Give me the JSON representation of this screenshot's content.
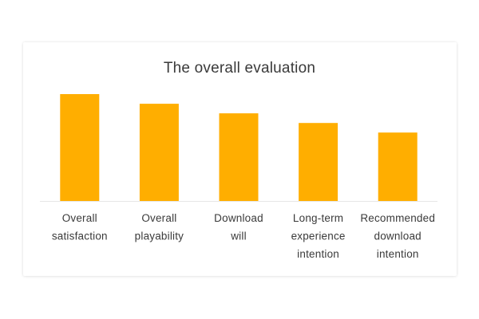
{
  "chart_data": {
    "type": "bar",
    "title": "The overall evaluation",
    "categories": [
      [
        "Overall",
        "satisfaction"
      ],
      [
        "Overall",
        "playability"
      ],
      [
        "Download",
        "will"
      ],
      [
        "Long-term",
        "experience",
        "intention"
      ],
      [
        "Recommended",
        "download",
        "intention"
      ]
    ],
    "values": [
      100,
      91,
      82,
      73,
      64
    ],
    "ylim": [
      0,
      100
    ],
    "grid": false,
    "legend": "none",
    "bar_color": "#FFAE00"
  }
}
